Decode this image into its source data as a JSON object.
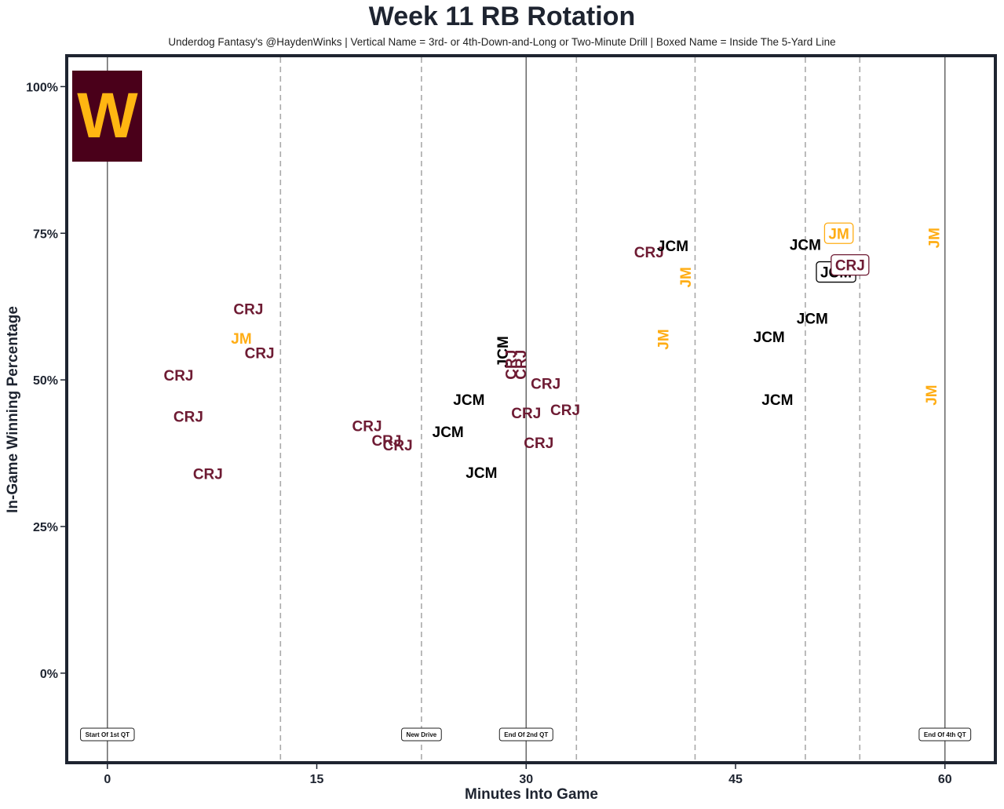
{
  "chart_data": {
    "type": "scatter",
    "title": "Week 11 RB Rotation",
    "subtitle": "Underdog Fantasy's @HaydenWinks | Vertical Name = 3rd- or 4th-Down-and-Long or Two-Minute Drill | Boxed Name = Inside The 5-Yard Line",
    "xlabel": "Minutes Into Game",
    "ylabel": "In-Game Winning Percentage",
    "xlim": [
      -2.8,
      63.5
    ],
    "ylim": [
      -15,
      105
    ],
    "xticks": [
      0,
      15,
      30,
      45,
      60
    ],
    "yticks": [
      0,
      25,
      50,
      75,
      100
    ],
    "ytick_labels": [
      "0%",
      "25%",
      "50%",
      "75%",
      "100%"
    ],
    "logo": {
      "letter": "W",
      "bg": "#4a001a",
      "fg": "#ffb612"
    },
    "colors": {
      "CRJ": "#6e1b33",
      "JM": "#ffad14",
      "JCM": "#000000",
      "axis": "#1e2430"
    },
    "solid_lines": [
      0,
      30,
      60
    ],
    "dashed_lines": [
      12.4,
      22.5,
      33.6,
      42.1,
      50,
      53.9
    ],
    "event_labels": [
      {
        "x": 0,
        "label": "Start Of 1st QT"
      },
      {
        "x": 22.5,
        "label": "New Drive"
      },
      {
        "x": 30,
        "label": "End Of 2nd QT"
      },
      {
        "x": 60,
        "label": "End Of 4th QT"
      }
    ],
    "points": [
      {
        "x": 5.1,
        "y": 50.8,
        "name": "CRJ",
        "vertical": false,
        "boxed": false
      },
      {
        "x": 5.8,
        "y": 43.8,
        "name": "CRJ",
        "vertical": false,
        "boxed": false
      },
      {
        "x": 7.2,
        "y": 34.0,
        "name": "CRJ",
        "vertical": false,
        "boxed": false
      },
      {
        "x": 10.1,
        "y": 62.1,
        "name": "CRJ",
        "vertical": false,
        "boxed": false
      },
      {
        "x": 9.6,
        "y": 57.1,
        "name": "JM",
        "vertical": false,
        "boxed": false
      },
      {
        "x": 10.9,
        "y": 54.6,
        "name": "CRJ",
        "vertical": false,
        "boxed": false
      },
      {
        "x": 18.6,
        "y": 42.2,
        "name": "CRJ",
        "vertical": false,
        "boxed": false
      },
      {
        "x": 20.0,
        "y": 39.7,
        "name": "CRJ",
        "vertical": false,
        "boxed": false
      },
      {
        "x": 20.8,
        "y": 38.9,
        "name": "CRJ",
        "vertical": false,
        "boxed": false
      },
      {
        "x": 25.9,
        "y": 46.7,
        "name": "JCM",
        "vertical": false,
        "boxed": false
      },
      {
        "x": 24.4,
        "y": 41.2,
        "name": "JCM",
        "vertical": false,
        "boxed": false
      },
      {
        "x": 26.8,
        "y": 34.2,
        "name": "JCM",
        "vertical": false,
        "boxed": false
      },
      {
        "x": 28.3,
        "y": 54.8,
        "name": "JCM",
        "vertical": true,
        "boxed": false
      },
      {
        "x": 28.9,
        "y": 52.6,
        "name": "CRJ",
        "vertical": true,
        "boxed": false
      },
      {
        "x": 29.6,
        "y": 52.6,
        "name": "CRJ",
        "vertical": true,
        "boxed": false
      },
      {
        "x": 31.4,
        "y": 49.4,
        "name": "CRJ",
        "vertical": false,
        "boxed": false
      },
      {
        "x": 30.0,
        "y": 44.4,
        "name": "CRJ",
        "vertical": false,
        "boxed": false
      },
      {
        "x": 32.8,
        "y": 44.9,
        "name": "CRJ",
        "vertical": false,
        "boxed": false
      },
      {
        "x": 30.9,
        "y": 39.3,
        "name": "CRJ",
        "vertical": false,
        "boxed": false
      },
      {
        "x": 38.8,
        "y": 71.8,
        "name": "CRJ",
        "vertical": false,
        "boxed": false
      },
      {
        "x": 40.5,
        "y": 72.9,
        "name": "JCM",
        "vertical": false,
        "boxed": false
      },
      {
        "x": 41.4,
        "y": 67.5,
        "name": "JM",
        "vertical": true,
        "boxed": false
      },
      {
        "x": 39.8,
        "y": 56.9,
        "name": "JM",
        "vertical": true,
        "boxed": false
      },
      {
        "x": 50.0,
        "y": 73.1,
        "name": "JCM",
        "vertical": false,
        "boxed": false
      },
      {
        "x": 52.4,
        "y": 75.0,
        "name": "JM",
        "vertical": false,
        "boxed": true
      },
      {
        "x": 52.2,
        "y": 68.4,
        "name": "JCM",
        "vertical": false,
        "boxed": true
      },
      {
        "x": 53.2,
        "y": 69.6,
        "name": "CRJ",
        "vertical": false,
        "boxed": true
      },
      {
        "x": 50.5,
        "y": 60.5,
        "name": "JCM",
        "vertical": false,
        "boxed": false
      },
      {
        "x": 47.4,
        "y": 57.4,
        "name": "JCM",
        "vertical": false,
        "boxed": false
      },
      {
        "x": 48.0,
        "y": 46.7,
        "name": "JCM",
        "vertical": false,
        "boxed": false
      },
      {
        "x": 59.2,
        "y": 74.2,
        "name": "JM",
        "vertical": true,
        "boxed": false
      },
      {
        "x": 59.0,
        "y": 47.4,
        "name": "JM",
        "vertical": true,
        "boxed": false
      }
    ]
  }
}
